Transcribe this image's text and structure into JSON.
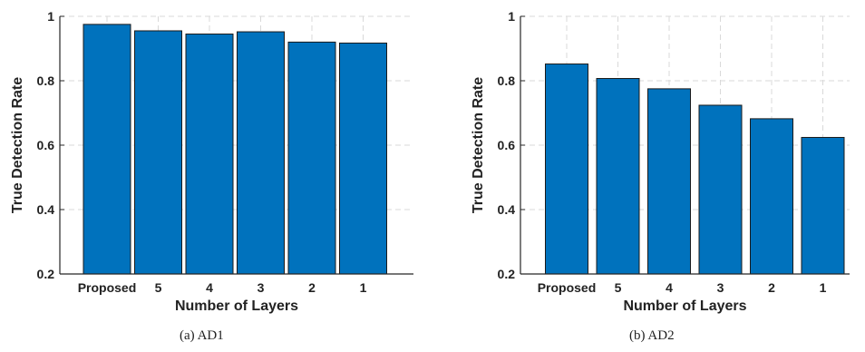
{
  "chart_data": [
    {
      "type": "bar",
      "categories": [
        "Proposed",
        "5",
        "4",
        "3",
        "2",
        "1"
      ],
      "values": [
        0.975,
        0.955,
        0.945,
        0.952,
        0.92,
        0.917
      ],
      "xlabel": "Number of Layers",
      "ylabel": "True Detection Rate",
      "ylim": [
        0.2,
        1.0
      ],
      "yticks": [
        "0.2",
        "0.4",
        "0.6",
        "0.8",
        "1"
      ],
      "grid": true,
      "bar_color": "#0072bd",
      "caption": "(a)  AD1"
    },
    {
      "type": "bar",
      "categories": [
        "Proposed",
        "5",
        "4",
        "3",
        "2",
        "1"
      ],
      "values": [
        0.852,
        0.807,
        0.775,
        0.724,
        0.682,
        0.624
      ],
      "xlabel": "Number of Layers",
      "ylabel": "True Detection Rate",
      "ylim": [
        0.2,
        1.0
      ],
      "yticks": [
        "0.2",
        "0.4",
        "0.6",
        "0.8",
        "1"
      ],
      "grid": true,
      "bar_color": "#0072bd",
      "caption": "(b)  AD2"
    }
  ]
}
